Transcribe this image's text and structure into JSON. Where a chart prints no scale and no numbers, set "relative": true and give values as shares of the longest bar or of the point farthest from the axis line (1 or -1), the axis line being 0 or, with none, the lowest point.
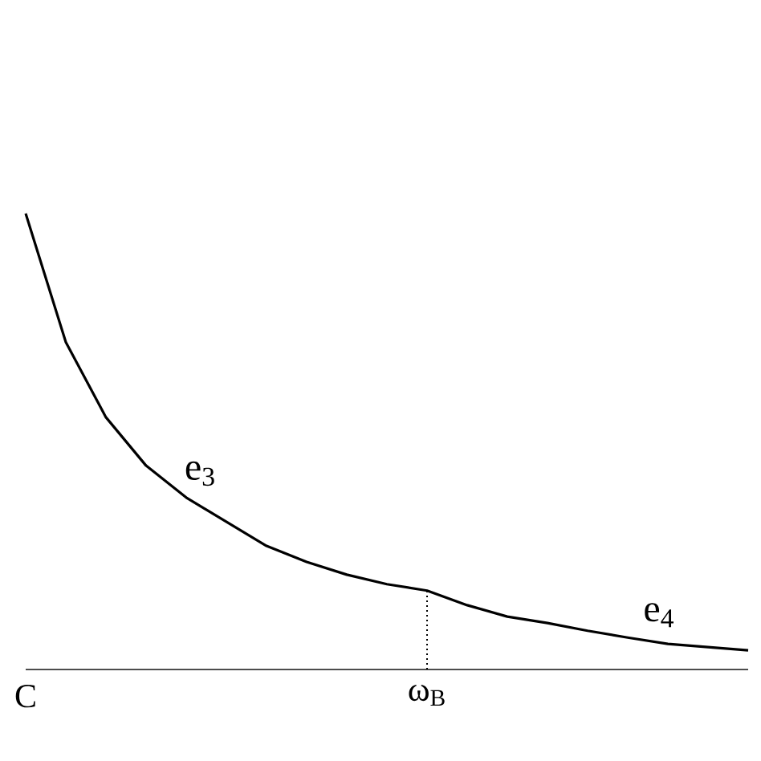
{
  "chart_data": {
    "type": "line",
    "relative": true,
    "categories": [
      "C",
      null,
      null,
      null,
      null,
      null,
      null,
      null,
      null,
      null,
      "ω$_{B}$",
      null,
      null,
      null,
      null,
      null,
      null,
      null,
      null
    ],
    "series": [
      {
        "color": "#000000",
        "values": [
          1.0,
          0.718,
          0.553,
          0.447,
          0.377,
          0.324,
          0.271,
          0.236,
          0.208,
          0.187,
          0.173,
          0.141,
          0.116,
          0.102,
          0.085,
          0.07,
          0.056,
          0.049,
          0.042
        ]
      }
    ],
    "ref_lines": [
      {
        "axis": "x",
        "value": "ω$_{B}$",
        "line_style": "dotted"
      }
    ],
    "annotations": [
      "e$_{3}$",
      "e$_{4}$"
    ],
    "line_style": "solid",
    "marker": "none",
    "grid": false
  }
}
